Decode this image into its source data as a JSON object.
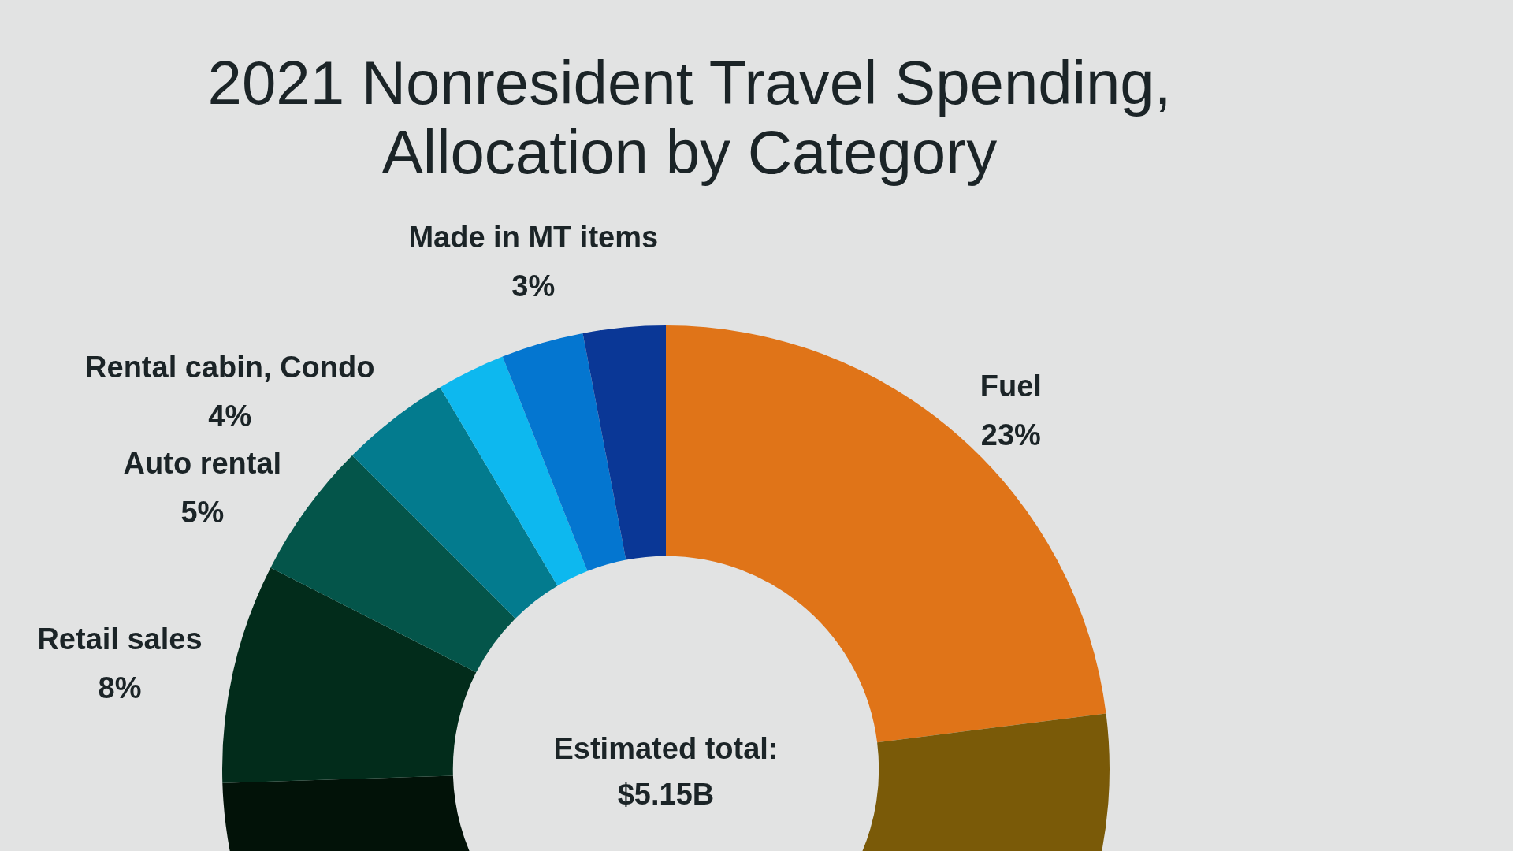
{
  "chart_data": {
    "type": "donut",
    "title": "2021 Nonresident Travel Spending, Allocation by Category",
    "categories": [
      "Fuel",
      null,
      null,
      "Retail sales",
      "Auto rental",
      "Rental cabin, Condo",
      null,
      "Made in MT items",
      null
    ],
    "values": [
      23,
      26,
      25.5,
      8,
      5,
      4,
      2.5,
      3,
      3
    ],
    "colors": [
      "#e07418",
      "#7a5a08",
      "#021208",
      "#022c1b",
      "#04554a",
      "#037b8e",
      "#0db8ef",
      "#0476d0",
      "#0a3796"
    ],
    "value_labels": [
      "23%",
      null,
      null,
      "8%",
      "5%",
      "4%",
      null,
      "3%",
      null
    ],
    "annotations": [
      "Estimated total:",
      "$5.15B"
    ]
  }
}
